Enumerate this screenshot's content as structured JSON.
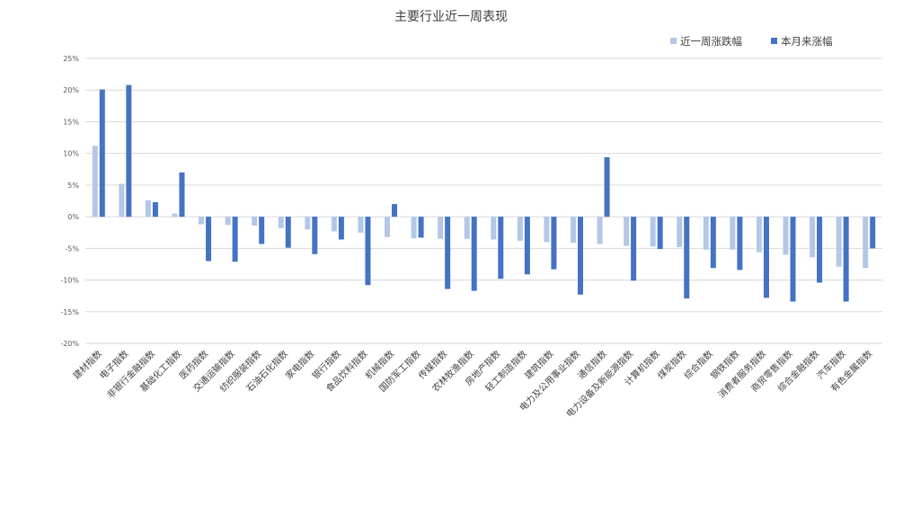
{
  "chart_data": {
    "type": "bar",
    "title": "主要行业近一周表现",
    "xlabel": "",
    "ylabel": "",
    "ylim": [
      -20,
      25
    ],
    "y_ticks": [
      25,
      20,
      15,
      10,
      5,
      0,
      -5,
      -10,
      -15,
      -20
    ],
    "y_tick_labels": [
      "25%",
      "20%",
      "15%",
      "10%",
      "5%",
      "0%",
      "-5%",
      "-10%",
      "-15%",
      "-20%"
    ],
    "grid": true,
    "legend_position": "top-right",
    "categories": [
      "建材指数",
      "电子指数",
      "非银行金融指数",
      "基础化工指数",
      "医药指数",
      "交通运输指数",
      "纺织服装指数",
      "石油石化指数",
      "家电指数",
      "银行指数",
      "食品饮料指数",
      "机械指数",
      "国防军工指数",
      "传媒指数",
      "农林牧渔指数",
      "房地产指数",
      "轻工制造指数",
      "建筑指数",
      "电力及公用事业指数",
      "通信指数",
      "电力设备及新能源指数",
      "计算机指数",
      "煤炭指数",
      "综合指数",
      "钢铁指数",
      "消费者服务指数",
      "商贸零售指数",
      "综合金融指数",
      "汽车指数",
      "有色金属指数"
    ],
    "series": [
      {
        "name": "近一周涨跌幅",
        "color": "#b4c7e7",
        "values": [
          11.2,
          5.2,
          2.6,
          0.5,
          -1.2,
          -1.3,
          -1.4,
          -1.8,
          -2.0,
          -2.3,
          -2.5,
          -3.2,
          -3.4,
          -3.5,
          -3.5,
          -3.6,
          -3.8,
          -4.0,
          -4.1,
          -4.3,
          -4.6,
          -4.7,
          -4.8,
          -5.2,
          -5.2,
          -5.6,
          -6.0,
          -6.4,
          -7.9,
          -8.1
        ]
      },
      {
        "name": "本月来涨幅",
        "color": "#4472c4",
        "values": [
          20.1,
          20.8,
          2.3,
          7.0,
          -7.0,
          -7.1,
          -4.3,
          -4.9,
          -5.9,
          -3.6,
          -10.8,
          2.0,
          -3.3,
          -11.4,
          -11.7,
          -9.8,
          -9.1,
          -8.3,
          -12.3,
          9.4,
          -10.1,
          -5.1,
          -12.9,
          -8.1,
          -8.4,
          -12.8,
          -13.4,
          -10.4,
          -13.4,
          -5.0
        ]
      }
    ]
  }
}
